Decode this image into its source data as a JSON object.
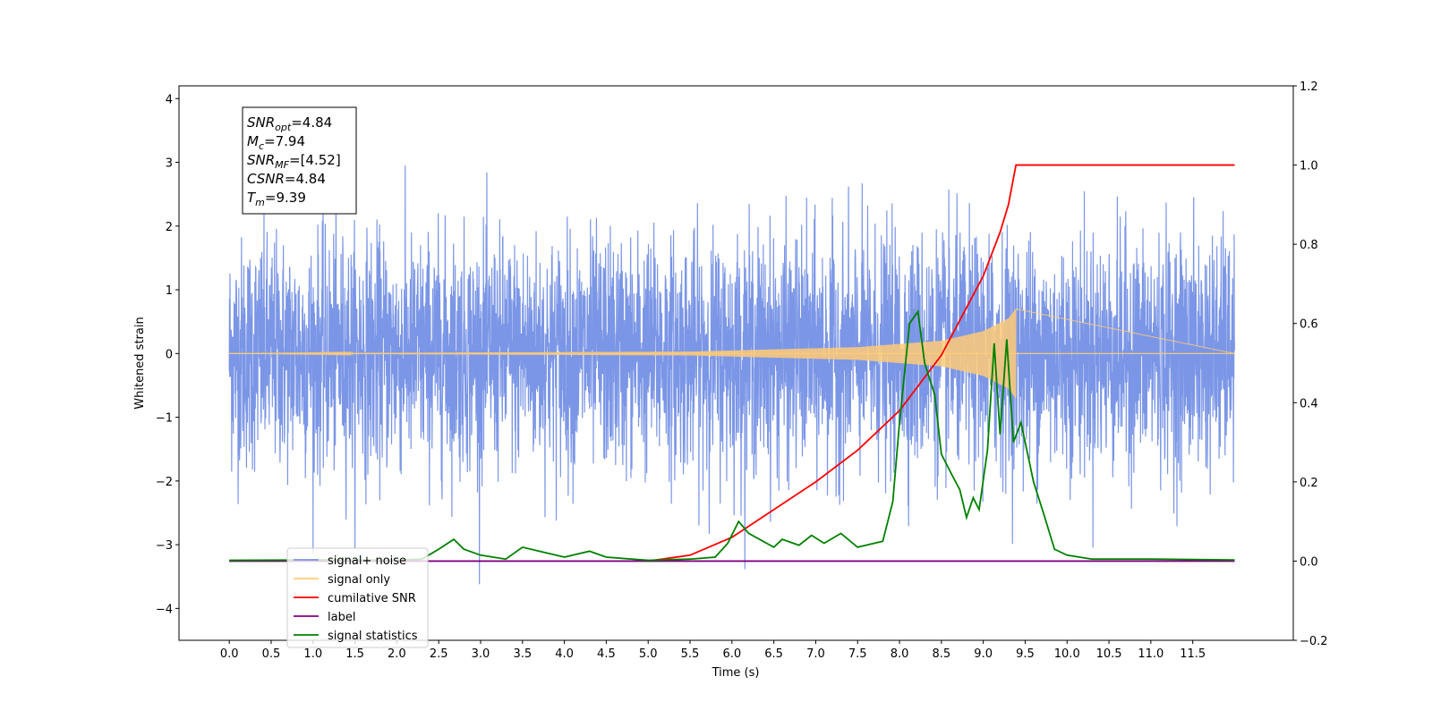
{
  "chart_data": {
    "type": "line",
    "xlabel": "Time (s)",
    "ylabel": "Whitened strain",
    "xlim": [
      -0.6,
      12.7
    ],
    "ylim": [
      -4.5,
      4.2
    ],
    "y2lim": [
      -0.2,
      1.2
    ],
    "x_ticks": [
      "0.0",
      "0.5",
      "1.0",
      "1.5",
      "2.0",
      "2.5",
      "3.0",
      "3.5",
      "4.0",
      "4.5",
      "5.0",
      "5.5",
      "6.0",
      "6.5",
      "7.0",
      "7.5",
      "8.0",
      "8.5",
      "9.0",
      "9.5",
      "10.0",
      "10.5",
      "11.0",
      "11.5"
    ],
    "y_ticks": [
      "4",
      "3",
      "2",
      "1",
      "0",
      "−1",
      "−2",
      "−3",
      "−4"
    ],
    "y2_ticks": [
      "1.2",
      "1.0",
      "0.8",
      "0.6",
      "0.4",
      "0.2",
      "0.0",
      "−0.2"
    ],
    "grid": false,
    "legend_position": "lower-left",
    "annotation": {
      "lines": [
        {
          "base": "SNR",
          "sub": "opt",
          "value": "=4.84"
        },
        {
          "base": "M",
          "sub": "c",
          "value": "=7.94"
        },
        {
          "base": "SNR",
          "sub": "MF",
          "value": "=[4.52]"
        },
        {
          "base": "CSNR",
          "sub": "",
          "value": "=4.84"
        },
        {
          "base": "T",
          "sub": "m",
          "value": "=9.39"
        }
      ]
    },
    "series": [
      {
        "name": "signal+ noise",
        "color": "#7b96e6",
        "axis": "left",
        "kind": "noise",
        "x_range": [
          0.0,
          12.0
        ],
        "std": 0.9
      },
      {
        "name": "signal only",
        "color": "#ffcb77",
        "axis": "left",
        "kind": "chirp",
        "x_range": [
          0.0,
          9.39
        ],
        "envelope": [
          [
            0.0,
            0.0
          ],
          [
            5.5,
            0.03
          ],
          [
            7.5,
            0.1
          ],
          [
            8.5,
            0.2
          ],
          [
            9.0,
            0.35
          ],
          [
            9.3,
            0.55
          ],
          [
            9.39,
            0.7
          ]
        ]
      },
      {
        "name": "cumilative SNR",
        "color": "#ff0000",
        "axis": "right",
        "kind": "line",
        "points": [
          [
            5.0,
            0.0
          ],
          [
            5.5,
            0.015
          ],
          [
            6.0,
            0.06
          ],
          [
            6.5,
            0.13
          ],
          [
            7.0,
            0.2
          ],
          [
            7.5,
            0.28
          ],
          [
            8.0,
            0.38
          ],
          [
            8.5,
            0.52
          ],
          [
            9.0,
            0.72
          ],
          [
            9.2,
            0.83
          ],
          [
            9.3,
            0.9
          ],
          [
            9.39,
            1.0
          ],
          [
            12.0,
            1.0
          ]
        ]
      },
      {
        "name": "label",
        "color": "#800080",
        "axis": "right",
        "kind": "line",
        "points": [
          [
            0.0,
            0.0
          ],
          [
            12.0,
            0.0
          ]
        ]
      },
      {
        "name": "signal statistics",
        "color": "#008000",
        "axis": "right",
        "kind": "line",
        "points": [
          [
            0.0,
            0.002
          ],
          [
            1.0,
            0.003
          ],
          [
            2.0,
            0.002
          ],
          [
            2.3,
            0.005
          ],
          [
            2.5,
            0.03
          ],
          [
            2.68,
            0.055
          ],
          [
            2.8,
            0.03
          ],
          [
            3.0,
            0.015
          ],
          [
            3.3,
            0.005
          ],
          [
            3.5,
            0.035
          ],
          [
            3.7,
            0.025
          ],
          [
            4.0,
            0.01
          ],
          [
            4.3,
            0.025
          ],
          [
            4.5,
            0.01
          ],
          [
            5.0,
            0.002
          ],
          [
            5.5,
            0.005
          ],
          [
            5.8,
            0.01
          ],
          [
            5.95,
            0.045
          ],
          [
            6.08,
            0.1
          ],
          [
            6.2,
            0.07
          ],
          [
            6.5,
            0.035
          ],
          [
            6.6,
            0.055
          ],
          [
            6.8,
            0.04
          ],
          [
            6.95,
            0.065
          ],
          [
            7.1,
            0.045
          ],
          [
            7.3,
            0.07
          ],
          [
            7.5,
            0.035
          ],
          [
            7.8,
            0.05
          ],
          [
            7.92,
            0.15
          ],
          [
            8.0,
            0.35
          ],
          [
            8.12,
            0.6
          ],
          [
            8.22,
            0.63
          ],
          [
            8.3,
            0.5
          ],
          [
            8.42,
            0.42
          ],
          [
            8.5,
            0.27
          ],
          [
            8.62,
            0.22
          ],
          [
            8.72,
            0.18
          ],
          [
            8.8,
            0.11
          ],
          [
            8.88,
            0.16
          ],
          [
            8.95,
            0.13
          ],
          [
            9.05,
            0.28
          ],
          [
            9.13,
            0.55
          ],
          [
            9.2,
            0.32
          ],
          [
            9.28,
            0.56
          ],
          [
            9.36,
            0.3
          ],
          [
            9.45,
            0.35
          ],
          [
            9.6,
            0.2
          ],
          [
            9.72,
            0.12
          ],
          [
            9.85,
            0.03
          ],
          [
            10.0,
            0.015
          ],
          [
            10.3,
            0.005
          ],
          [
            11.0,
            0.005
          ],
          [
            12.0,
            0.003
          ]
        ]
      }
    ]
  }
}
